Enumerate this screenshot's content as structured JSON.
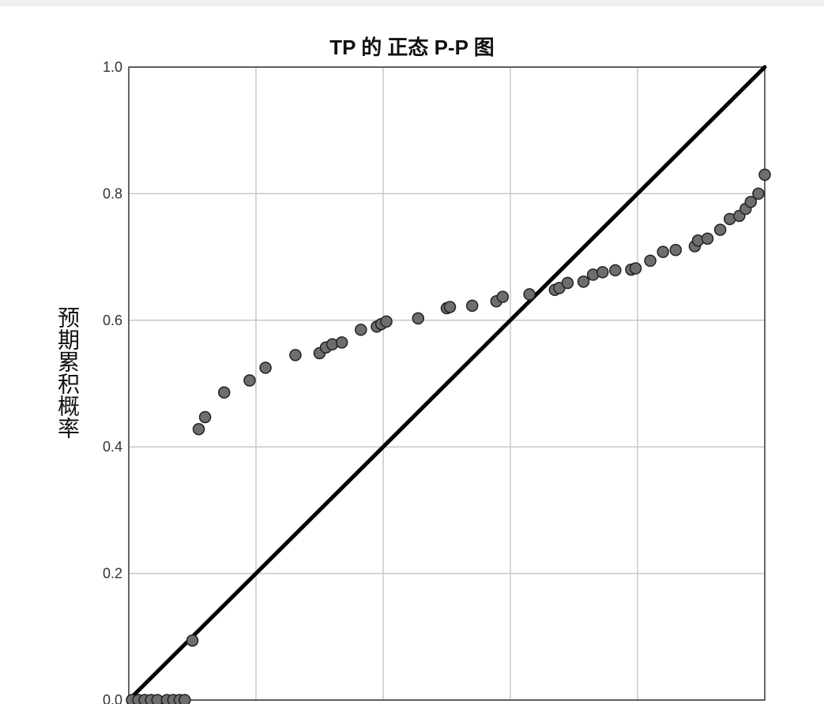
{
  "chart_data": {
    "type": "scatter",
    "title": "TP 的 正态 P-P 图",
    "xlabel": "",
    "ylabel": "预期累积概率",
    "xlim": [
      0,
      1
    ],
    "ylim": [
      0,
      1
    ],
    "y_ticks": [
      "0.0",
      "0.2",
      "0.4",
      "0.6",
      "0.8",
      "1.0"
    ],
    "y_tick_values": [
      0,
      0.2,
      0.4,
      0.6,
      0.8,
      1.0
    ],
    "x_grid_values": [
      0.2,
      0.4,
      0.6,
      0.8
    ],
    "grid": true,
    "reference_line": {
      "from": [
        0,
        0
      ],
      "to": [
        1,
        1
      ]
    },
    "points": {
      "x": [
        0.005,
        0.015,
        0.025,
        0.035,
        0.045,
        0.06,
        0.07,
        0.08,
        0.088,
        0.1,
        0.11,
        0.12,
        0.15,
        0.19,
        0.215,
        0.262,
        0.3,
        0.31,
        0.32,
        0.335,
        0.365,
        0.39,
        0.397,
        0.405,
        0.455,
        0.5,
        0.505,
        0.54,
        0.578,
        0.588,
        0.63,
        0.67,
        0.677,
        0.69,
        0.715,
        0.73,
        0.745,
        0.765,
        0.79,
        0.797,
        0.82,
        0.84,
        0.86,
        0.89,
        0.895,
        0.91,
        0.93,
        0.945,
        0.96,
        0.97,
        0.978,
        0.99,
        1.0
      ],
      "y": [
        0.0,
        0.0,
        0.0,
        0.0,
        0.0,
        0.0,
        0.0,
        0.0,
        0.0,
        0.094,
        0.428,
        0.447,
        0.486,
        0.505,
        0.525,
        0.545,
        0.548,
        0.557,
        0.562,
        0.565,
        0.585,
        0.59,
        0.594,
        0.598,
        0.603,
        0.619,
        0.621,
        0.623,
        0.63,
        0.637,
        0.641,
        0.648,
        0.651,
        0.659,
        0.661,
        0.672,
        0.676,
        0.679,
        0.68,
        0.682,
        0.694,
        0.708,
        0.711,
        0.717,
        0.726,
        0.729,
        0.743,
        0.76,
        0.765,
        0.776,
        0.787,
        0.8,
        0.83
      ],
      "color": "#6e6e6e"
    }
  }
}
